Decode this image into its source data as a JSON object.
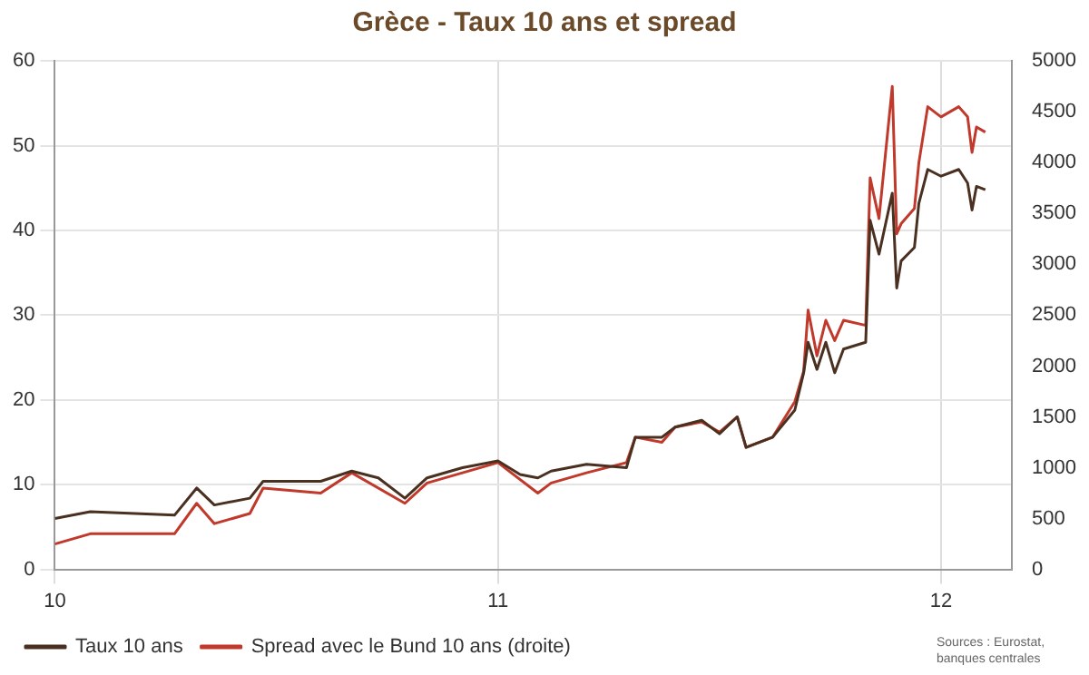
{
  "chart_data": {
    "type": "line",
    "title": "Grèce - Taux 10 ans et spread",
    "xlim": [
      10,
      12.16
    ],
    "xticks": [
      10,
      11,
      12
    ],
    "ylim": [
      0,
      60
    ],
    "yticks": [
      0,
      10,
      20,
      30,
      40,
      50,
      60
    ],
    "y2lim": [
      0,
      5000
    ],
    "y2ticks": [
      0,
      500,
      1000,
      1500,
      2000,
      2500,
      3000,
      3500,
      4000,
      4500,
      5000
    ],
    "grid": true,
    "legend": "bottom",
    "marker": "none",
    "line_style": "solid",
    "annotations": [
      "Sources : Eurostat, banques centrales"
    ],
    "series": [
      {
        "name": "Taux 10 ans",
        "color": "#4a3020",
        "x": [
          10.0,
          10.08,
          10.27,
          10.32,
          10.36,
          10.44,
          10.47,
          10.6,
          10.67,
          10.73,
          10.79,
          10.84,
          10.92,
          11.0,
          11.05,
          11.09,
          11.12,
          11.2,
          11.29,
          11.31,
          11.37,
          11.4,
          11.46,
          11.5,
          11.54,
          11.56,
          11.62,
          11.67,
          11.69,
          11.7,
          11.72,
          11.74,
          11.76,
          11.78,
          11.83,
          11.84,
          11.86,
          11.89,
          11.9,
          11.91,
          11.94,
          11.95,
          11.97,
          12.0,
          12.04,
          12.06,
          12.07,
          12.08,
          12.1
        ],
        "values": [
          6,
          6.8,
          6.4,
          9.6,
          7.6,
          8.4,
          10.4,
          10.4,
          11.6,
          10.8,
          8.4,
          10.8,
          12,
          12.8,
          11.2,
          10.8,
          11.6,
          12.4,
          12,
          15.6,
          15.6,
          16.8,
          17.6,
          16,
          18,
          14.4,
          15.6,
          18.8,
          23.2,
          26.8,
          23.6,
          26.8,
          23.2,
          26,
          26.8,
          41.2,
          37.2,
          44.4,
          33.2,
          36.4,
          38,
          43.2,
          47.2,
          46.4,
          47.2,
          45.6,
          42.4,
          45.2,
          44.8
        ]
      },
      {
        "name": "Spread avec le Bund 10 ans (droite)",
        "color": "#c0392b",
        "axis": "y2",
        "x": [
          10.0,
          10.08,
          10.27,
          10.32,
          10.36,
          10.44,
          10.47,
          10.6,
          10.67,
          10.79,
          10.84,
          10.92,
          11.0,
          11.09,
          11.12,
          11.2,
          11.29,
          11.31,
          11.37,
          11.4,
          11.46,
          11.5,
          11.54,
          11.56,
          11.62,
          11.67,
          11.69,
          11.7,
          11.72,
          11.74,
          11.76,
          11.78,
          11.83,
          11.84,
          11.86,
          11.89,
          11.9,
          11.91,
          11.94,
          11.95,
          11.97,
          12.0,
          12.04,
          12.06,
          12.07,
          12.08,
          12.1
        ],
        "values": [
          250,
          350,
          350,
          650,
          450,
          550,
          800,
          750,
          950,
          650,
          850,
          950,
          1050,
          750,
          850,
          950,
          1050,
          1300,
          1250,
          1400,
          1450,
          1350,
          1500,
          1200,
          1300,
          1650,
          1950,
          2550,
          2100,
          2450,
          2250,
          2450,
          2400,
          3850,
          3450,
          4750,
          3300,
          3400,
          3550,
          4000,
          4550,
          4450,
          4550,
          4450,
          4100,
          4350,
          4300
        ]
      }
    ]
  }
}
